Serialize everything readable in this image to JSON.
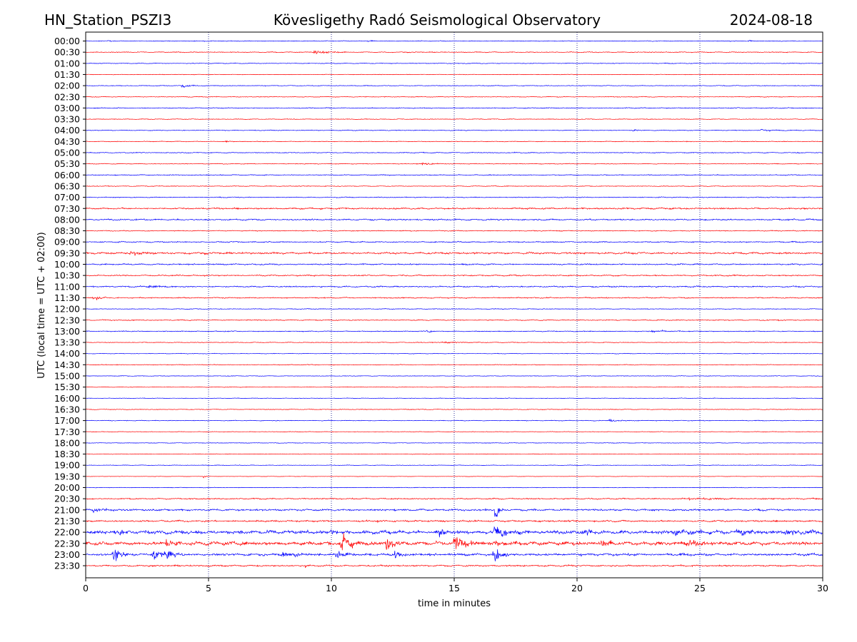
{
  "chart_data": {
    "type": "line",
    "title_left": "HN_Station_PSZI3",
    "title": "Kövesligethy Radó Seismological Observatory",
    "title_right": "2024-08-18",
    "xlabel": "time in minutes",
    "ylabel": "UTC (local time = UTC + 02:00)",
    "xlim": [
      0,
      30
    ],
    "x_ticks": [
      "0",
      "5",
      "10",
      "15",
      "20",
      "25",
      "30"
    ],
    "x_tick_values": [
      0,
      5,
      10,
      15,
      20,
      25,
      30
    ],
    "grid": "vertical dotted lines every 5 minutes",
    "colors": {
      "even_rows": "#0000ff",
      "odd_rows": "#ff0000"
    },
    "rows": [
      {
        "label": "00:00",
        "color": "#0000ff",
        "noise": 0.5,
        "events": [
          [
            0.9,
            0.8,
            0.3
          ],
          [
            11.5,
            1.2,
            0.25
          ],
          [
            27.0,
            1.0,
            0.3
          ]
        ]
      },
      {
        "label": "00:30",
        "color": "#ff0000",
        "noise": 0.6,
        "events": [
          [
            9.3,
            1.8,
            0.6
          ]
        ]
      },
      {
        "label": "01:00",
        "color": "#0000ff",
        "noise": 0.5,
        "events": []
      },
      {
        "label": "01:30",
        "color": "#ff0000",
        "noise": 0.4,
        "events": []
      },
      {
        "label": "02:00",
        "color": "#0000ff",
        "noise": 0.5,
        "events": [
          [
            3.9,
            1.5,
            0.4
          ]
        ]
      },
      {
        "label": "02:30",
        "color": "#ff0000",
        "noise": 0.5,
        "events": []
      },
      {
        "label": "03:00",
        "color": "#0000ff",
        "noise": 0.6,
        "events": []
      },
      {
        "label": "03:30",
        "color": "#ff0000",
        "noise": 0.5,
        "events": []
      },
      {
        "label": "04:00",
        "color": "#0000ff",
        "noise": 0.5,
        "events": [
          [
            22.3,
            1.5,
            0.15
          ],
          [
            27.5,
            1.5,
            0.4
          ]
        ]
      },
      {
        "label": "04:30",
        "color": "#ff0000",
        "noise": 0.5,
        "events": [
          [
            5.7,
            1.2,
            0.15
          ]
        ]
      },
      {
        "label": "05:00",
        "color": "#0000ff",
        "noise": 0.6,
        "events": []
      },
      {
        "label": "05:30",
        "color": "#ff0000",
        "noise": 0.5,
        "events": [
          [
            13.7,
            1.2,
            0.5
          ]
        ]
      },
      {
        "label": "06:00",
        "color": "#0000ff",
        "noise": 0.6,
        "events": []
      },
      {
        "label": "06:30",
        "color": "#ff0000",
        "noise": 0.5,
        "events": []
      },
      {
        "label": "07:00",
        "color": "#0000ff",
        "noise": 0.6,
        "events": []
      },
      {
        "label": "07:30",
        "color": "#ff0000",
        "noise": 1.1,
        "events": []
      },
      {
        "label": "08:00",
        "color": "#0000ff",
        "noise": 1.0,
        "events": []
      },
      {
        "label": "08:30",
        "color": "#ff0000",
        "noise": 0.6,
        "events": []
      },
      {
        "label": "09:00",
        "color": "#0000ff",
        "noise": 0.8,
        "events": []
      },
      {
        "label": "09:30",
        "color": "#ff0000",
        "noise": 1.3,
        "events": [
          [
            1.8,
            2.0,
            0.8
          ]
        ]
      },
      {
        "label": "10:00",
        "color": "#0000ff",
        "noise": 0.9,
        "events": []
      },
      {
        "label": "10:30",
        "color": "#ff0000",
        "noise": 0.9,
        "events": []
      },
      {
        "label": "11:00",
        "color": "#0000ff",
        "noise": 0.9,
        "events": [
          [
            2.6,
            2.0,
            0.4
          ]
        ]
      },
      {
        "label": "11:30",
        "color": "#ff0000",
        "noise": 0.8,
        "events": [
          [
            0.3,
            2.0,
            0.4
          ]
        ]
      },
      {
        "label": "12:00",
        "color": "#0000ff",
        "noise": 0.5,
        "events": []
      },
      {
        "label": "12:30",
        "color": "#ff0000",
        "noise": 0.7,
        "events": []
      },
      {
        "label": "13:00",
        "color": "#0000ff",
        "noise": 0.6,
        "events": [
          [
            13.9,
            1.5,
            0.2
          ],
          [
            23.0,
            1.2,
            0.8
          ]
        ]
      },
      {
        "label": "13:30",
        "color": "#ff0000",
        "noise": 0.5,
        "events": [
          [
            14.5,
            1.2,
            0.6
          ]
        ]
      },
      {
        "label": "14:00",
        "color": "#0000ff",
        "noise": 0.4,
        "events": []
      },
      {
        "label": "14:30",
        "color": "#ff0000",
        "noise": 0.5,
        "events": []
      },
      {
        "label": "15:00",
        "color": "#0000ff",
        "noise": 0.4,
        "events": []
      },
      {
        "label": "15:30",
        "color": "#ff0000",
        "noise": 0.4,
        "events": []
      },
      {
        "label": "16:00",
        "color": "#0000ff",
        "noise": 0.4,
        "events": []
      },
      {
        "label": "16:30",
        "color": "#ff0000",
        "noise": 0.5,
        "events": []
      },
      {
        "label": "17:00",
        "color": "#0000ff",
        "noise": 0.5,
        "events": [
          [
            21.3,
            1.2,
            0.6
          ]
        ]
      },
      {
        "label": "17:30",
        "color": "#ff0000",
        "noise": 0.4,
        "events": []
      },
      {
        "label": "18:00",
        "color": "#0000ff",
        "noise": 0.4,
        "events": []
      },
      {
        "label": "18:30",
        "color": "#ff0000",
        "noise": 0.4,
        "events": []
      },
      {
        "label": "19:00",
        "color": "#0000ff",
        "noise": 0.4,
        "events": []
      },
      {
        "label": "19:30",
        "color": "#ff0000",
        "noise": 0.3,
        "events": [
          [
            4.8,
            1.5,
            0.1
          ]
        ]
      },
      {
        "label": "20:00",
        "color": "#0000ff",
        "noise": 0.4,
        "events": []
      },
      {
        "label": "20:30",
        "color": "#ff0000",
        "noise": 0.9,
        "events": [
          [
            24.5,
            1.0,
            2.0
          ]
        ]
      },
      {
        "label": "21:00",
        "color": "#0000ff",
        "noise": 1.3,
        "events": [
          [
            0.3,
            1.5,
            0.8
          ],
          [
            16.65,
            16.0,
            0.12
          ]
        ]
      },
      {
        "label": "21:30",
        "color": "#ff0000",
        "noise": 1.2,
        "events": []
      },
      {
        "label": "22:00",
        "color": "#0000ff",
        "noise": 2.4,
        "events": [
          [
            1.3,
            4.0,
            0.3
          ],
          [
            10.0,
            5.0,
            0.2
          ],
          [
            14.3,
            6.0,
            0.3
          ],
          [
            16.65,
            9.0,
            0.4
          ],
          [
            20.3,
            4.0,
            0.4
          ],
          [
            24.0,
            4.0,
            0.5
          ],
          [
            26.5,
            4.0,
            0.5
          ],
          [
            28.5,
            4.0,
            0.6
          ]
        ]
      },
      {
        "label": "22:30",
        "color": "#ff0000",
        "noise": 2.4,
        "events": [
          [
            3.3,
            7.0,
            0.3
          ],
          [
            10.4,
            11.0,
            0.4
          ],
          [
            12.2,
            7.0,
            0.4
          ],
          [
            15.0,
            9.0,
            0.4
          ],
          [
            16.6,
            4.0,
            0.3
          ],
          [
            21.0,
            3.5,
            0.5
          ],
          [
            24.5,
            3.5,
            0.6
          ]
        ]
      },
      {
        "label": "23:00",
        "color": "#0000ff",
        "noise": 1.6,
        "events": [
          [
            1.1,
            9.0,
            0.3
          ],
          [
            2.7,
            5.0,
            0.6
          ],
          [
            3.35,
            8.0,
            0.2
          ],
          [
            8.0,
            4.0,
            0.5
          ],
          [
            10.2,
            5.0,
            0.3
          ],
          [
            12.6,
            6.0,
            0.3
          ],
          [
            16.6,
            8.0,
            0.3
          ]
        ]
      },
      {
        "label": "23:30",
        "color": "#ff0000",
        "noise": 1.1,
        "events": [
          [
            8.9,
            3.0,
            0.1
          ]
        ]
      }
    ]
  }
}
